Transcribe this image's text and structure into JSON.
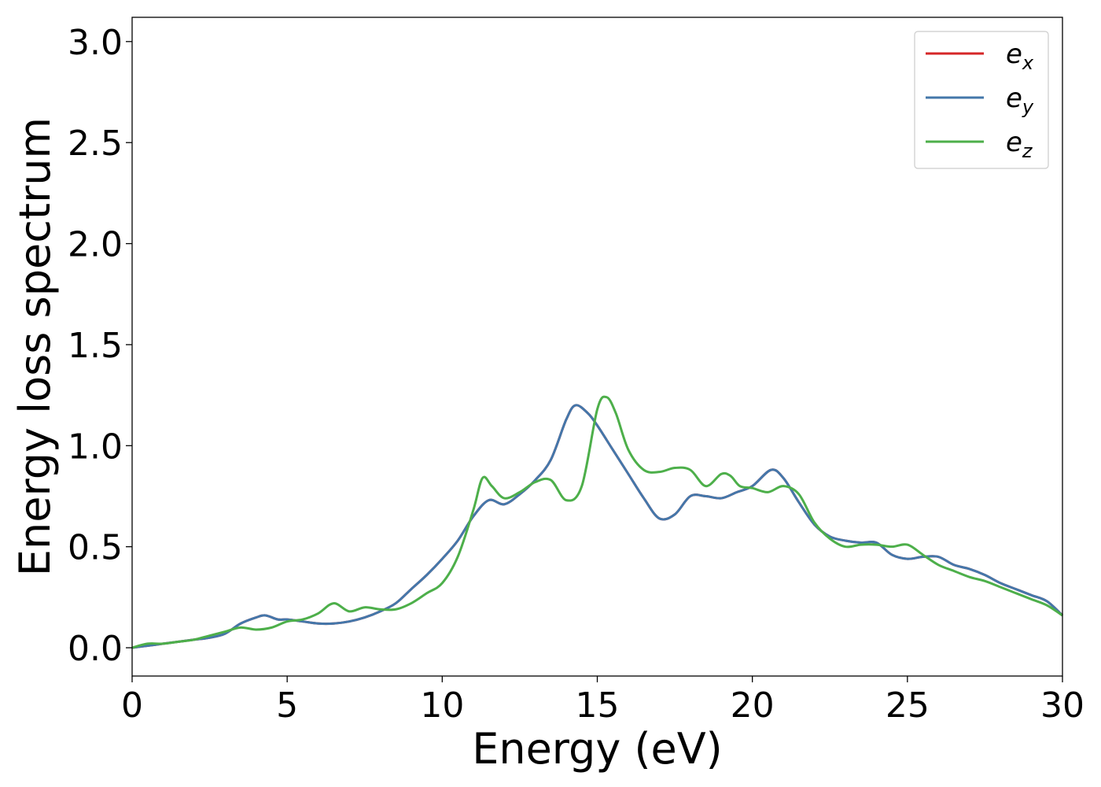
{
  "chart_data": {
    "type": "line",
    "xlabel": "Energy (eV)",
    "ylabel": "Energy loss spectrum",
    "xlim": [
      0,
      30
    ],
    "ylim": [
      -0.14,
      3.12
    ],
    "xticks": [
      0,
      5,
      10,
      15,
      20,
      25,
      30
    ],
    "yticks": [
      0.0,
      0.5,
      1.0,
      1.5,
      2.0,
      2.5,
      3.0
    ],
    "xtick_labels": [
      "0",
      "5",
      "10",
      "15",
      "20",
      "25",
      "30"
    ],
    "ytick_labels": [
      "0.0",
      "0.5",
      "1.0",
      "1.5",
      "2.0",
      "2.5",
      "3.0"
    ],
    "grid": false,
    "legend_position": "top-right",
    "series": [
      {
        "name": "e_x",
        "legend_base": "e",
        "legend_sub": "x",
        "color": "#d62728",
        "x": [
          0,
          0.5,
          1,
          1.5,
          2,
          2.5,
          3,
          3.5,
          4,
          4.3,
          4.7,
          5,
          5.5,
          6,
          6.5,
          7,
          7.5,
          8,
          8.5,
          9,
          9.5,
          10,
          10.5,
          11,
          11.5,
          12,
          12.5,
          13,
          13.5,
          14,
          14.3,
          14.7,
          15,
          15.5,
          16,
          16.5,
          17,
          17.5,
          18,
          18.5,
          19,
          19.5,
          20,
          20.6,
          21,
          21.5,
          22,
          22.5,
          23,
          23.5,
          24,
          24.5,
          25,
          25.5,
          26,
          26.5,
          27,
          27.5,
          28,
          28.5,
          29,
          29.5,
          30
        ],
        "y": [
          0.0,
          0.01,
          0.02,
          0.03,
          0.04,
          0.05,
          0.07,
          0.12,
          0.15,
          0.16,
          0.14,
          0.14,
          0.13,
          0.12,
          0.12,
          0.13,
          0.15,
          0.18,
          0.22,
          0.29,
          0.36,
          0.44,
          0.53,
          0.65,
          0.73,
          0.71,
          0.76,
          0.83,
          0.93,
          1.13,
          1.2,
          1.16,
          1.1,
          0.98,
          0.86,
          0.74,
          0.64,
          0.66,
          0.75,
          0.75,
          0.74,
          0.77,
          0.8,
          0.88,
          0.84,
          0.72,
          0.61,
          0.55,
          0.53,
          0.52,
          0.52,
          0.46,
          0.44,
          0.45,
          0.45,
          0.41,
          0.39,
          0.36,
          0.32,
          0.29,
          0.26,
          0.23,
          0.16
        ]
      },
      {
        "name": "e_y",
        "legend_base": "e",
        "legend_sub": "y",
        "color": "#4477aa",
        "x": [
          0,
          0.5,
          1,
          1.5,
          2,
          2.5,
          3,
          3.5,
          4,
          4.3,
          4.7,
          5,
          5.5,
          6,
          6.5,
          7,
          7.5,
          8,
          8.5,
          9,
          9.5,
          10,
          10.5,
          11,
          11.5,
          12,
          12.5,
          13,
          13.5,
          14,
          14.3,
          14.7,
          15,
          15.5,
          16,
          16.5,
          17,
          17.5,
          18,
          18.5,
          19,
          19.5,
          20,
          20.6,
          21,
          21.5,
          22,
          22.5,
          23,
          23.5,
          24,
          24.5,
          25,
          25.5,
          26,
          26.5,
          27,
          27.5,
          28,
          28.5,
          29,
          29.5,
          30
        ],
        "y": [
          0.0,
          0.01,
          0.02,
          0.03,
          0.04,
          0.05,
          0.07,
          0.12,
          0.15,
          0.16,
          0.14,
          0.14,
          0.13,
          0.12,
          0.12,
          0.13,
          0.15,
          0.18,
          0.22,
          0.29,
          0.36,
          0.44,
          0.53,
          0.65,
          0.73,
          0.71,
          0.76,
          0.83,
          0.93,
          1.13,
          1.2,
          1.16,
          1.1,
          0.98,
          0.86,
          0.74,
          0.64,
          0.66,
          0.75,
          0.75,
          0.74,
          0.77,
          0.8,
          0.88,
          0.84,
          0.72,
          0.61,
          0.55,
          0.53,
          0.52,
          0.52,
          0.46,
          0.44,
          0.45,
          0.45,
          0.41,
          0.39,
          0.36,
          0.32,
          0.29,
          0.26,
          0.23,
          0.16
        ]
      },
      {
        "name": "e_z",
        "legend_base": "e",
        "legend_sub": "z",
        "color": "#4daf4a",
        "x": [
          0,
          0.5,
          1,
          1.5,
          2,
          2.5,
          3,
          3.5,
          4,
          4.5,
          5,
          5.5,
          6,
          6.5,
          7,
          7.5,
          8,
          8.5,
          9,
          9.5,
          10,
          10.5,
          11,
          11.3,
          11.6,
          12,
          12.5,
          13,
          13.5,
          14,
          14.5,
          15,
          15.3,
          15.6,
          16,
          16.5,
          17,
          17.5,
          18,
          18.5,
          19,
          19.3,
          19.6,
          20,
          20.5,
          21,
          21.5,
          22,
          22.5,
          23,
          23.5,
          24,
          24.5,
          25,
          25.5,
          26,
          26.5,
          27,
          27.5,
          28,
          28.5,
          29,
          29.5,
          30
        ],
        "y": [
          0.0,
          0.02,
          0.02,
          0.03,
          0.04,
          0.06,
          0.08,
          0.1,
          0.09,
          0.1,
          0.13,
          0.14,
          0.17,
          0.22,
          0.18,
          0.2,
          0.19,
          0.19,
          0.22,
          0.27,
          0.32,
          0.45,
          0.68,
          0.84,
          0.8,
          0.74,
          0.77,
          0.82,
          0.83,
          0.73,
          0.8,
          1.18,
          1.24,
          1.16,
          0.98,
          0.88,
          0.87,
          0.89,
          0.88,
          0.8,
          0.86,
          0.85,
          0.8,
          0.79,
          0.77,
          0.8,
          0.76,
          0.62,
          0.54,
          0.5,
          0.51,
          0.51,
          0.5,
          0.51,
          0.46,
          0.41,
          0.38,
          0.35,
          0.33,
          0.3,
          0.27,
          0.24,
          0.21,
          0.16
        ]
      }
    ]
  }
}
